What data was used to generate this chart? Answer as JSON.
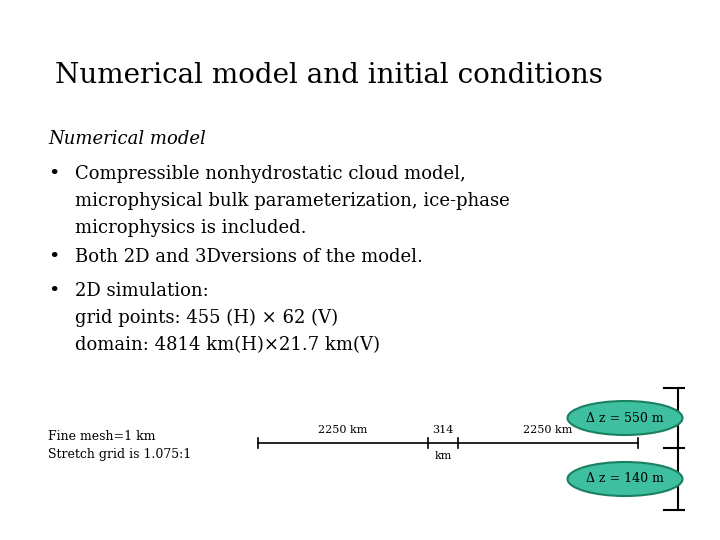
{
  "title": "Numerical model and initial conditions",
  "subtitle": "Numerical model",
  "bullet1_line1": "Compressible nonhydrostatic cloud model,",
  "bullet1_line2": "microphysical bulk parameterization, ice-phase",
  "bullet1_line3": "microphysics is included.",
  "bullet2": "Both 2D and 3Dversions of the model.",
  "bullet3_line1": "2D simulation:",
  "bullet3_line2": "grid points: 455 (H) × 62 (V)",
  "bullet3_line3": "domain: 4814 km(H)×21.7 km(V)",
  "footnote1": "Fine mesh=1 km",
  "footnote2": "Stretch grid is 1.075:1",
  "label_2250_left": "2250 km",
  "label_314": "314",
  "label_km": "km",
  "label_2250_right": "2250 km",
  "ellipse1_label": "Δ z = 550 m",
  "ellipse2_label": "Δ z = 140 m",
  "bg_color": "#ffffff",
  "text_color": "#000000",
  "ellipse_fill": "#3dbfa0",
  "ellipse_edge": "#1a8060",
  "title_fontsize": 20,
  "subtitle_fontsize": 13,
  "body_fontsize": 13,
  "small_fontsize": 9
}
